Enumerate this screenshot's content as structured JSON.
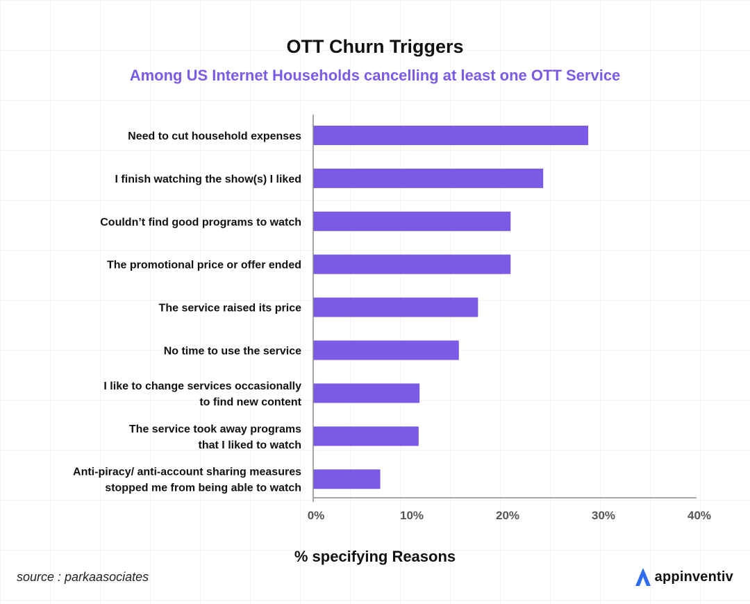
{
  "colors": {
    "bar": "#7B5AE6",
    "subtitle": "#7B5AE6",
    "axis": "#888888",
    "brand_mark": "#2E6BF0"
  },
  "source": "source : parkaasociates",
  "brand": {
    "name": "appinventiv",
    "logo_icon": "appinventiv-logo-icon"
  },
  "chart_data": {
    "type": "bar",
    "orientation": "horizontal",
    "title": "OTT Churn Triggers",
    "subtitle": "Among US Internet Households cancelling at least one OTT Service",
    "xlabel": "% specifying Reasons",
    "ylabel": "",
    "xlim": [
      0,
      40
    ],
    "xticks": [
      "0%",
      "10%",
      "20%",
      "30%",
      "40%"
    ],
    "xtick_values": [
      0,
      10,
      20,
      30,
      40
    ],
    "categories": [
      [
        "Need to cut household expenses"
      ],
      [
        "I finish watching the show(s) I liked"
      ],
      [
        "Couldn’t find good programs to watch"
      ],
      [
        "The promotional price or offer ended"
      ],
      [
        "The service raised its price"
      ],
      [
        "No time to use the service"
      ],
      [
        "I like to change services occasionally",
        "to find new content"
      ],
      [
        "The service took away programs",
        "that I liked to watch"
      ],
      [
        "Anti-piracy/ anti-account sharing measures",
        "stopped me from being able to watch"
      ]
    ],
    "values": [
      28.7,
      24,
      20.6,
      20.6,
      17.2,
      15.2,
      11.1,
      11,
      7
    ]
  }
}
